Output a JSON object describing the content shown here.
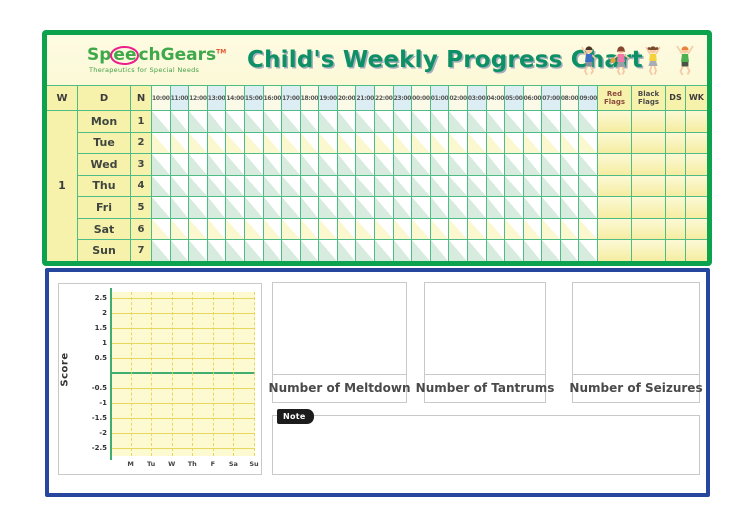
{
  "brand": {
    "name_pre": "Sp",
    "name_mid": "ee",
    "name_post": "chGears",
    "trademark": "TM",
    "tagline": "Therapeutics for Special Needs"
  },
  "title": "Child's Weekly Progress Chart",
  "kids_icons": [
    "jumping-boy-blue-shirt",
    "jumping-girl-pink-jacket-basket",
    "jumping-girl-yellow-top-pigtails",
    "jumping-boy-green-shirt-orange-hair"
  ],
  "table": {
    "week_header": "W",
    "day_header": "D",
    "number_header": "N",
    "times": [
      "10:00",
      "11:00",
      "12:00",
      "13:00",
      "14:00",
      "15:00",
      "16:00",
      "17:00",
      "18:00",
      "19:00",
      "20:00",
      "21:00",
      "22:00",
      "23:00",
      "00:00",
      "01:00",
      "02:00",
      "03:00",
      "04:00",
      "05:00",
      "06:00",
      "07:00",
      "08:00",
      "09:00"
    ],
    "red_flags_header": "Red Flags",
    "black_flags_header": "Black Flags",
    "ds_header": "DS",
    "wk_header": "WK",
    "week_value": "1",
    "rows": [
      {
        "day": "Mon",
        "n": "1",
        "tint": "green"
      },
      {
        "day": "Tue",
        "n": "2",
        "tint": "yellow"
      },
      {
        "day": "Wed",
        "n": "3",
        "tint": "green"
      },
      {
        "day": "Thu",
        "n": "4",
        "tint": "green"
      },
      {
        "day": "Fri",
        "n": "5",
        "tint": "green"
      },
      {
        "day": "Sat",
        "n": "6",
        "tint": "yellow"
      },
      {
        "day": "Sun",
        "n": "7",
        "tint": "green"
      }
    ]
  },
  "chart_data": {
    "type": "line",
    "title": "",
    "xlabel": "",
    "ylabel": "Score",
    "x_tick_labels": [
      "M",
      "Tu",
      "W",
      "Th",
      "F",
      "Sa",
      "Su"
    ],
    "y_tick_labels": [
      "2.5",
      "2",
      "1.5",
      "1",
      "0.5",
      "",
      "-0.5",
      "-1",
      "-1.5",
      "-2",
      "-2.5"
    ],
    "y_ticks": [
      2.5,
      2,
      1.5,
      1,
      0.5,
      0,
      -0.5,
      -1,
      -1.5,
      -2,
      -2.5
    ],
    "ylim": [
      -2.75,
      2.75
    ],
    "series": [],
    "grid": true,
    "legend": false
  },
  "panels": {
    "meltdown_label": "Number of Meltdown",
    "tantrums_label": "Number of Tantrums",
    "seizures_label": "Number of Seizures",
    "note_label": "Note"
  },
  "colors": {
    "outer_border_green": "#0ca24e",
    "table_grid_green": "#4dbd85",
    "panel_yellow": "#f7f2ab",
    "title_teal": "#0d9065",
    "logo_green": "#3ea84b",
    "logo_ring_pink": "#ec1e8c",
    "bottom_border_blue": "#27479e",
    "chart_bg_yellow": "#fdfad2",
    "chart_grid_yellow": "#e8d75f",
    "axis_green": "#3fae6e",
    "red_flags_text": "#8a4a3c"
  }
}
